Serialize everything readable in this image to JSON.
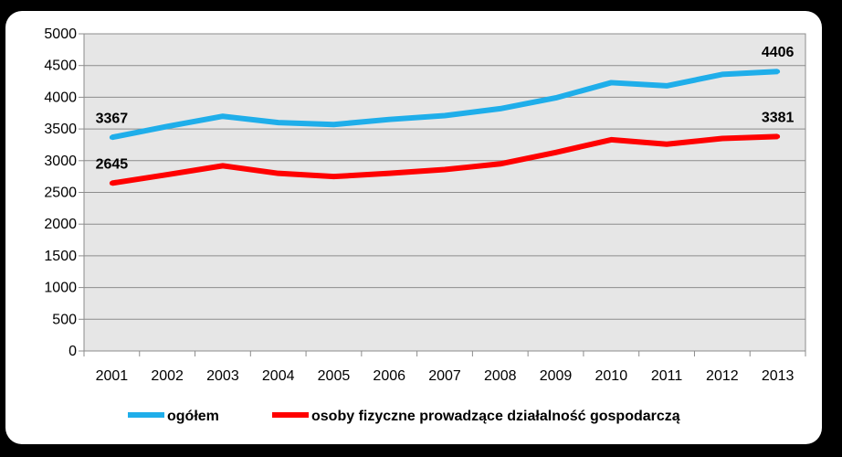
{
  "chart_data": {
    "type": "line",
    "title": "",
    "xlabel": "",
    "ylabel": "",
    "ylim": [
      0,
      5000
    ],
    "yticks": [
      0,
      500,
      1000,
      1500,
      2000,
      2500,
      3000,
      3500,
      4000,
      4500,
      5000
    ],
    "grid": true,
    "legend": "bottom",
    "categories": [
      "2001",
      "2002",
      "2003",
      "2004",
      "2005",
      "2006",
      "2007",
      "2008",
      "2009",
      "2010",
      "2011",
      "2012",
      "2013"
    ],
    "series": [
      {
        "name": "ogółem",
        "color": "#1FAEEA",
        "values": [
          3367,
          3540,
          3700,
          3600,
          3570,
          3650,
          3710,
          3820,
          3990,
          4230,
          4180,
          4360,
          4406
        ]
      },
      {
        "name": "osoby fizyczne prowadzące działalność gospodarczą",
        "color": "#FF0000",
        "values": [
          2645,
          2780,
          2920,
          2800,
          2750,
          2800,
          2860,
          2950,
          3130,
          3330,
          3260,
          3350,
          3381
        ]
      }
    ],
    "data_labels": [
      {
        "series": 0,
        "index": 0,
        "text": "3367"
      },
      {
        "series": 0,
        "index": 12,
        "text": "4406"
      },
      {
        "series": 1,
        "index": 0,
        "text": "2645"
      },
      {
        "series": 1,
        "index": 12,
        "text": "3381"
      }
    ]
  }
}
